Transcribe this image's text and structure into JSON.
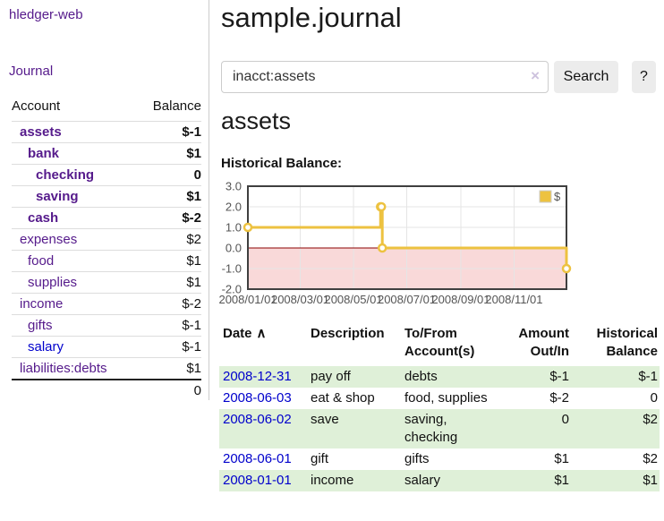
{
  "sidebar": {
    "brand": "hledger-web",
    "journal_link": "Journal",
    "accounts": {
      "headers": {
        "account": "Account",
        "balance": "Balance"
      },
      "rows": [
        {
          "account": "assets",
          "balance": "$-1"
        },
        {
          "account": "bank",
          "balance": "$1"
        },
        {
          "account": "checking",
          "balance": "0"
        },
        {
          "account": "saving",
          "balance": "$1"
        },
        {
          "account": "cash",
          "balance": "$-2"
        },
        {
          "account": "expenses",
          "balance": "$2"
        },
        {
          "account": "food",
          "balance": "$1"
        },
        {
          "account": "supplies",
          "balance": "$1"
        },
        {
          "account": "income",
          "balance": "$-2"
        },
        {
          "account": "gifts",
          "balance": "$-1"
        },
        {
          "account": "salary",
          "balance": "$-1"
        },
        {
          "account": "liabilities:debts",
          "balance": "$1"
        }
      ],
      "total": "0"
    }
  },
  "header": {
    "title": "sample.journal"
  },
  "search": {
    "value": "inacct:assets",
    "clear_icon": "×",
    "button_label": "Search",
    "help_label": "?"
  },
  "account_page": {
    "title": "assets",
    "chart_label": "Historical Balance:"
  },
  "chart_data": {
    "type": "line",
    "title": "Historical Balance",
    "legend": [
      {
        "name": "$",
        "color": "#edc240"
      }
    ],
    "series": [
      {
        "name": "$",
        "steps": true,
        "points": [
          [
            "2008-01-01",
            1
          ],
          [
            "2008-06-01",
            2
          ],
          [
            "2008-06-02",
            2
          ],
          [
            "2008-06-03",
            0
          ],
          [
            "2008-12-31",
            -1
          ]
        ]
      }
    ],
    "x_range": [
      "2008-01-01",
      "2008-12-31"
    ],
    "ylim": [
      -2,
      3
    ],
    "yticks": [
      3,
      2,
      1,
      0,
      -1,
      -2
    ],
    "ytick_labels": [
      "3.0",
      "2.0",
      "1.0",
      "0.0",
      "-1.0",
      "-2.0"
    ],
    "xticks": [
      "2008-01-01",
      "2008-03-01",
      "2008-05-01",
      "2008-07-01",
      "2008-09-01",
      "2008-11-01"
    ],
    "xtick_labels": [
      "2008/01/01",
      "2008/03/01",
      "2008/05/01",
      "2008/07/01",
      "2008/09/01",
      "2008/11/01"
    ],
    "grid": true,
    "legend_position": "top-right",
    "line_color": "#edc240",
    "zero_line_color": "#8b0000",
    "negative_region_color": "#f9d9d9"
  },
  "register": {
    "headers": {
      "date": "Date",
      "sort_icon": "∧",
      "description": "Description",
      "account": "To/From Account(s)",
      "amount": "Amount Out/In",
      "balance": "Historical Balance"
    },
    "rows": [
      {
        "date": "2008-12-31",
        "description": "pay off",
        "account": "debts",
        "amount": "$-1",
        "balance": "$-1"
      },
      {
        "date": "2008-06-03",
        "description": "eat & shop",
        "account": "food, supplies",
        "amount": "$-2",
        "balance": "0"
      },
      {
        "date": "2008-06-02",
        "description": "save",
        "account": "saving, checking",
        "amount": "0",
        "balance": "$2"
      },
      {
        "date": "2008-06-01",
        "description": "gift",
        "account": "gifts",
        "amount": "$1",
        "balance": "$2"
      },
      {
        "date": "2008-01-01",
        "description": "income",
        "account": "salary",
        "amount": "$1",
        "balance": "$1"
      }
    ]
  }
}
